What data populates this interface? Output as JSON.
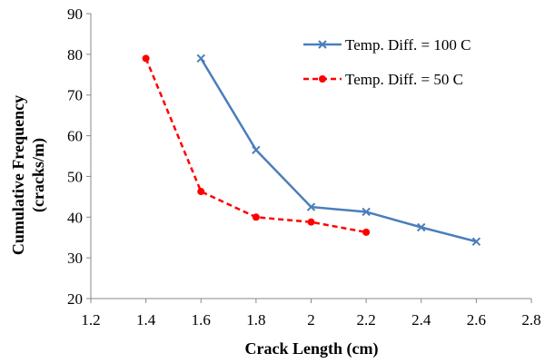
{
  "chart_data": {
    "type": "line",
    "xlabel": "Crack Length (cm)",
    "ylabel_lines": [
      "Cumulative Frequency",
      "(cracks/m)"
    ],
    "xlim": [
      1.2,
      2.8
    ],
    "ylim": [
      20,
      90
    ],
    "xticks": [
      "1.2",
      "1.4",
      "1.6",
      "1.8",
      "2",
      "2.2",
      "2.4",
      "2.6",
      "2.8"
    ],
    "yticks": [
      "20",
      "30",
      "40",
      "50",
      "60",
      "70",
      "80",
      "90"
    ],
    "grid": false,
    "legend_position": "top-right",
    "series": [
      {
        "name": "Temp. Diff. = 100 C",
        "color": "#4a7ebb",
        "line_style": "solid",
        "marker": "x",
        "x": [
          1.6,
          1.8,
          2.0,
          2.2,
          2.4,
          2.6
        ],
        "y": [
          79,
          56.5,
          42.5,
          41.3,
          37.5,
          34
        ]
      },
      {
        "name": "Temp. Diff. = 50 C",
        "color": "#ff0000",
        "line_style": "dashed",
        "marker": "circle",
        "x": [
          1.4,
          1.6,
          1.8,
          2.0,
          2.2
        ],
        "y": [
          79,
          46.3,
          40,
          38.8,
          36.3
        ]
      }
    ]
  }
}
